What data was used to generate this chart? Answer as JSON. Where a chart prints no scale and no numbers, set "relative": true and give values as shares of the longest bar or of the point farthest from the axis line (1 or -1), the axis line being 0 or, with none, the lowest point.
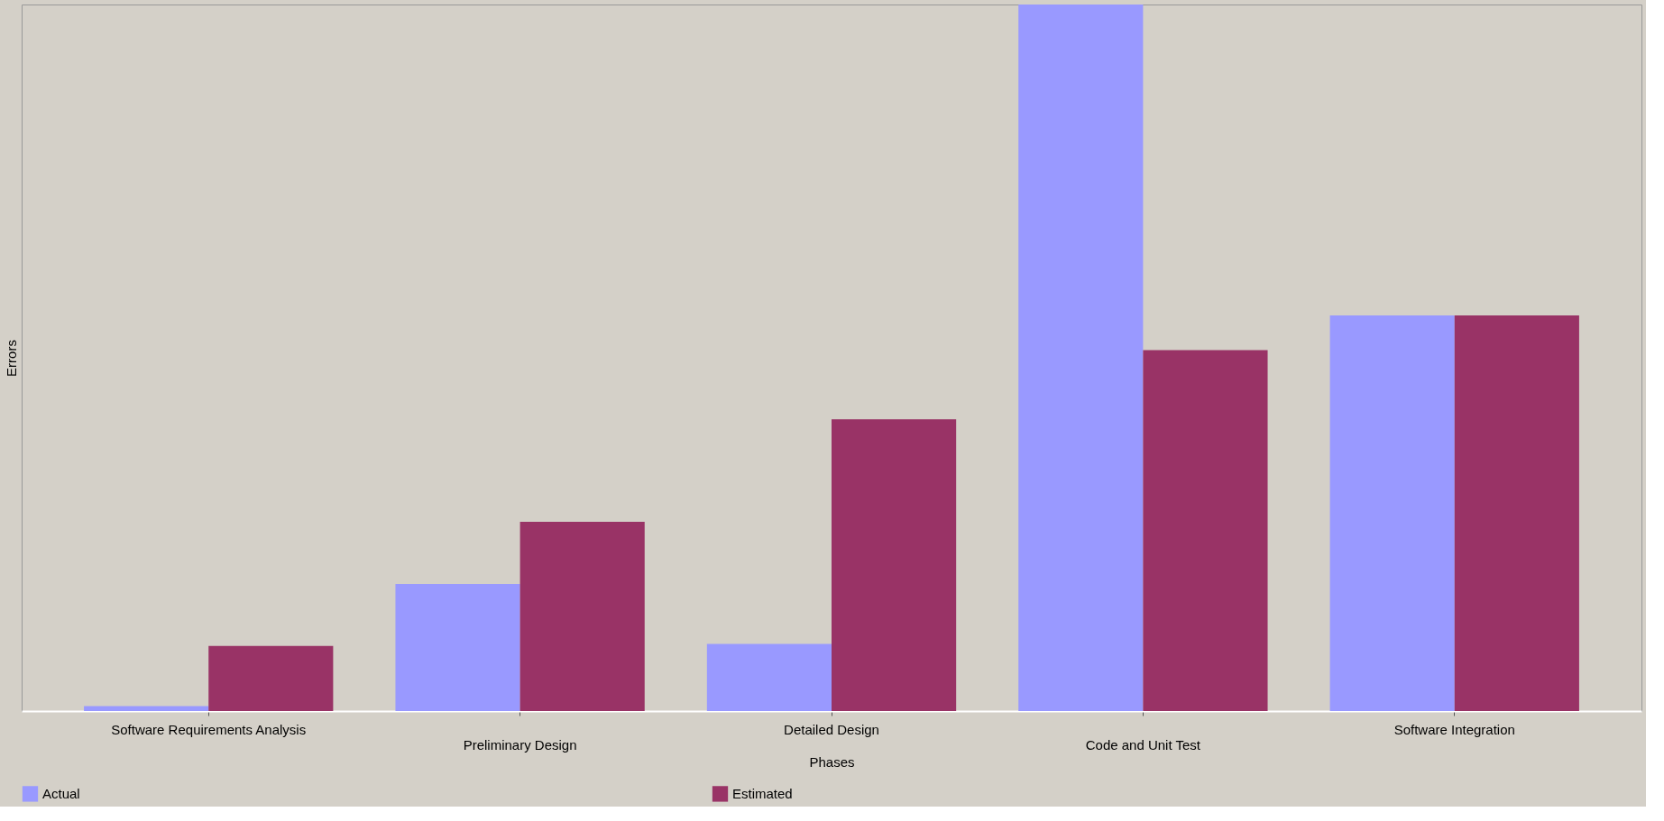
{
  "chart_data": {
    "type": "bar",
    "xlabel": "Phases",
    "ylabel": "Errors",
    "relative": true,
    "categories": [
      "Software Requirements Analysis",
      "Preliminary Design",
      "Detailed Design",
      "Code and Unit Test",
      "Software Integration"
    ],
    "series": [
      {
        "name": "Actual",
        "color": "#9999ff",
        "values": [
          0.007,
          0.18,
          0.095,
          1,
          0.56
        ]
      },
      {
        "name": "Estimated",
        "color": "#993366",
        "values": [
          0.092,
          0.268,
          0.413,
          0.511,
          0.56
        ]
      }
    ],
    "legend": "bottom",
    "grid": false
  }
}
